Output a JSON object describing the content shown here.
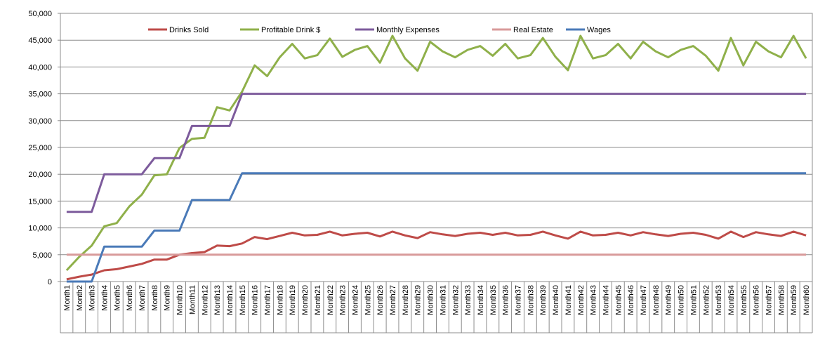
{
  "chart_data": {
    "type": "line",
    "title": "",
    "xlabel": "",
    "ylabel": "",
    "ylim": [
      0,
      50000
    ],
    "y_ticks": [
      "0",
      "5,000",
      "10,000",
      "15,000",
      "20,000",
      "25,000",
      "30,000",
      "35,000",
      "40,000",
      "45,000",
      "50,000"
    ],
    "categories": [
      "Month1",
      "Month2",
      "Month3",
      "Month4",
      "Month5",
      "Month6",
      "Month7",
      "Month8",
      "Month9",
      "Month10",
      "Month11",
      "Month12",
      "Month13",
      "Month14",
      "Month15",
      "Month16",
      "Month17",
      "Month18",
      "Month19",
      "Month20",
      "Month21",
      "Month22",
      "Month23",
      "Month24",
      "Month25",
      "Month26",
      "Month27",
      "Month28",
      "Month29",
      "Month30",
      "Month31",
      "Month32",
      "Month33",
      "Month34",
      "Month35",
      "Month36",
      "Month37",
      "Month38",
      "Month39",
      "Month40",
      "Month41",
      "Month42",
      "Month43",
      "Month44",
      "Month45",
      "Month46",
      "Month47",
      "Month48",
      "Month49",
      "Month50",
      "Month51",
      "Month52",
      "Month53",
      "Month54",
      "Month55",
      "Month56",
      "Month57",
      "Month58",
      "Month59",
      "Month60"
    ],
    "grid": "horizontal",
    "legend_position": "top",
    "series": [
      {
        "name": "Drinks Sold",
        "color": "#be4b48",
        "values": [
          400,
          900,
          1300,
          2100,
          2300,
          2800,
          3300,
          4100,
          4100,
          5000,
          5300,
          5500,
          6700,
          6600,
          7100,
          8300,
          7900,
          8500,
          9100,
          8600,
          8700,
          9300,
          8600,
          8900,
          9100,
          8400,
          9300,
          8600,
          8100,
          9200,
          8800,
          8500,
          8900,
          9100,
          8700,
          9100,
          8600,
          8700,
          9300,
          8600,
          8000,
          9300,
          8600,
          8700,
          9100,
          8600,
          9200,
          8800,
          8500,
          8900,
          9100,
          8700,
          8000,
          9300,
          8300,
          9200,
          8800,
          8500,
          9300,
          8600
        ]
      },
      {
        "name": "Profitable Drink $",
        "color": "#8fb04a",
        "values": [
          2100,
          4600,
          6700,
          10300,
          10900,
          14000,
          16200,
          19800,
          20000,
          24900,
          26600,
          26800,
          32500,
          31900,
          35400,
          40300,
          38300,
          41800,
          44300,
          41600,
          42200,
          45300,
          41900,
          43200,
          43900,
          40800,
          45800,
          41600,
          39300,
          44700,
          42900,
          41800,
          43200,
          43900,
          42100,
          44300,
          41600,
          42200,
          45400,
          41900,
          39400,
          45800,
          41600,
          42200,
          44300,
          41600,
          44700,
          42900,
          41800,
          43200,
          43900,
          42100,
          39300,
          45400,
          40300,
          44700,
          42900,
          41800,
          45800,
          41600
        ]
      },
      {
        "name": "Monthly Expenses",
        "color": "#7d5b9c",
        "values": [
          13000,
          13000,
          13000,
          20000,
          20000,
          20000,
          20000,
          23000,
          23000,
          23000,
          29000,
          29000,
          29000,
          29000,
          35000,
          35000,
          35000,
          35000,
          35000,
          35000,
          35000,
          35000,
          35000,
          35000,
          35000,
          35000,
          35000,
          35000,
          35000,
          35000,
          35000,
          35000,
          35000,
          35000,
          35000,
          35000,
          35000,
          35000,
          35000,
          35000,
          35000,
          35000,
          35000,
          35000,
          35000,
          35000,
          35000,
          35000,
          35000,
          35000,
          35000,
          35000,
          35000,
          35000,
          35000,
          35000,
          35000,
          35000,
          35000,
          35000
        ]
      },
      {
        "name": "Real Estate",
        "color": "#d89a9a",
        "values": [
          5000,
          5000,
          5000,
          5000,
          5000,
          5000,
          5000,
          5000,
          5000,
          5000,
          5000,
          5000,
          5000,
          5000,
          5000,
          5000,
          5000,
          5000,
          5000,
          5000,
          5000,
          5000,
          5000,
          5000,
          5000,
          5000,
          5000,
          5000,
          5000,
          5000,
          5000,
          5000,
          5000,
          5000,
          5000,
          5000,
          5000,
          5000,
          5000,
          5000,
          5000,
          5000,
          5000,
          5000,
          5000,
          5000,
          5000,
          5000,
          5000,
          5000,
          5000,
          5000,
          5000,
          5000,
          5000,
          5000,
          5000,
          5000,
          5000,
          5000
        ]
      },
      {
        "name": "Wages",
        "color": "#4a7ab8",
        "values": [
          0,
          0,
          0,
          6500,
          6500,
          6500,
          6500,
          9500,
          9500,
          9500,
          15200,
          15200,
          15200,
          15200,
          20200,
          20200,
          20200,
          20200,
          20200,
          20200,
          20200,
          20200,
          20200,
          20200,
          20200,
          20200,
          20200,
          20200,
          20200,
          20200,
          20200,
          20200,
          20200,
          20200,
          20200,
          20200,
          20200,
          20200,
          20200,
          20200,
          20200,
          20200,
          20200,
          20200,
          20200,
          20200,
          20200,
          20200,
          20200,
          20200,
          20200,
          20200,
          20200,
          20200,
          20200,
          20200,
          20200,
          20200,
          20200,
          20200
        ]
      }
    ]
  }
}
